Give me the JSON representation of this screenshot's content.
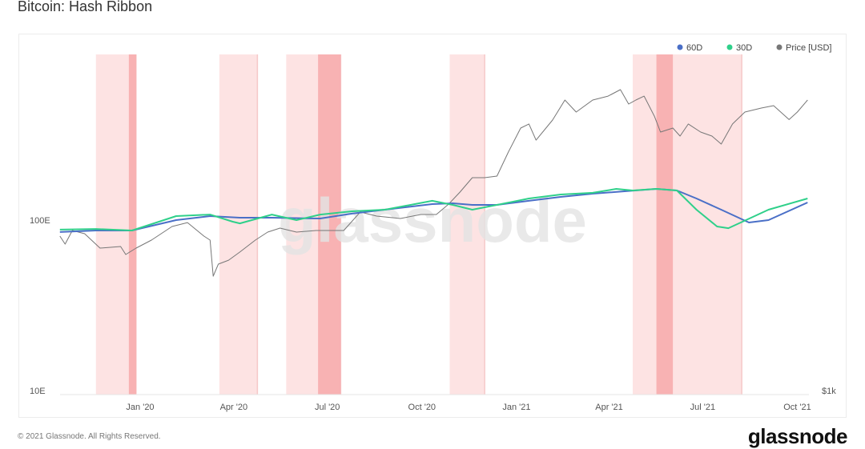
{
  "chart_data": {
    "type": "line",
    "title": "Bitcoin: Hash Ribbon",
    "left_axis": {
      "scale": "log",
      "range": [
        10,
        1000
      ],
      "ticks": [
        {
          "value": 10,
          "label": "10E"
        },
        {
          "value": 100,
          "label": "100E"
        }
      ]
    },
    "right_axis": {
      "scale": "log",
      "ticks": [
        {
          "value": 1000,
          "label": "$1k"
        }
      ]
    },
    "x_axis": {
      "range": [
        "2019-10-15",
        "2021-10-13"
      ],
      "ticks": [
        {
          "date": "2020-01-01",
          "label": "Jan '20"
        },
        {
          "date": "2020-04-01",
          "label": "Apr '20"
        },
        {
          "date": "2020-07-01",
          "label": "Jul '20"
        },
        {
          "date": "2020-10-01",
          "label": "Oct '20"
        },
        {
          "date": "2021-01-01",
          "label": "Jan '21"
        },
        {
          "date": "2021-04-01",
          "label": "Apr '21"
        },
        {
          "date": "2021-07-01",
          "label": "Jul '21"
        },
        {
          "date": "2021-10-01",
          "label": "Oct '21"
        }
      ]
    },
    "legend": {
      "placement": "top-right",
      "items": [
        {
          "name": "60D",
          "color": "#4a6fc7"
        },
        {
          "name": "30D",
          "color": "#2fd08a"
        },
        {
          "name": "Price [USD]",
          "color": "#777777"
        }
      ]
    },
    "bands": [
      {
        "start": "2019-11-19",
        "end": "2019-12-28",
        "kind": "capitulation"
      },
      {
        "start": "2019-12-21",
        "end": "2019-12-28",
        "kind": "recovery"
      },
      {
        "start": "2020-03-18",
        "end": "2020-04-24",
        "kind": "capitulation"
      },
      {
        "start": "2020-05-22",
        "end": "2020-07-14",
        "kind": "capitulation"
      },
      {
        "start": "2020-06-22",
        "end": "2020-07-14",
        "kind": "recovery"
      },
      {
        "start": "2020-10-28",
        "end": "2020-12-01",
        "kind": "capitulation"
      },
      {
        "start": "2021-04-24",
        "end": "2021-08-08",
        "kind": "capitulation"
      },
      {
        "start": "2021-05-17",
        "end": "2021-06-02",
        "kind": "recovery"
      }
    ],
    "series": [
      {
        "name": "60D",
        "axis": "left",
        "color": "#4a6fc7",
        "points": [
          [
            "2019-10-15",
            85.1
          ],
          [
            "2019-11-19",
            86.9
          ],
          [
            "2019-12-24",
            86.9
          ],
          [
            "2020-02-05",
            100
          ],
          [
            "2020-03-09",
            105.5
          ],
          [
            "2020-04-07",
            103.3
          ],
          [
            "2020-05-08",
            103.3
          ],
          [
            "2020-06-24",
            102.2
          ],
          [
            "2020-07-25",
            109.1
          ],
          [
            "2020-08-26",
            115.1
          ],
          [
            "2020-10-11",
            124.2
          ],
          [
            "2020-10-31",
            125.5
          ],
          [
            "2020-11-19",
            122.8
          ],
          [
            "2020-12-13",
            122.8
          ],
          [
            "2021-01-13",
            129.7
          ],
          [
            "2021-02-13",
            136.8
          ],
          [
            "2021-03-16",
            142.9
          ],
          [
            "2021-04-16",
            147.6
          ],
          [
            "2021-05-17",
            152.4
          ],
          [
            "2021-06-06",
            149.2
          ],
          [
            "2021-06-25",
            133.9
          ],
          [
            "2021-07-19",
            115.1
          ],
          [
            "2021-08-15",
            96.8
          ],
          [
            "2021-09-03",
            100
          ],
          [
            "2021-10-11",
            126.9
          ]
        ]
      },
      {
        "name": "30D",
        "axis": "left",
        "color": "#2fd08a",
        "points": [
          [
            "2019-10-15",
            87.9
          ],
          [
            "2019-11-19",
            88.7
          ],
          [
            "2019-12-24",
            86.9
          ],
          [
            "2020-02-05",
            105.5
          ],
          [
            "2020-03-09",
            107.8
          ],
          [
            "2020-03-31",
            97.9
          ],
          [
            "2020-04-07",
            95.7
          ],
          [
            "2020-05-08",
            107.8
          ],
          [
            "2020-06-01",
            100
          ],
          [
            "2020-06-24",
            107.8
          ],
          [
            "2020-07-25",
            112.6
          ],
          [
            "2020-08-26",
            115.1
          ],
          [
            "2020-10-11",
            129.7
          ],
          [
            "2020-10-31",
            122.8
          ],
          [
            "2020-11-19",
            115.1
          ],
          [
            "2020-12-13",
            122.8
          ],
          [
            "2021-01-13",
            133.9
          ],
          [
            "2021-02-13",
            141.3
          ],
          [
            "2021-03-16",
            144.5
          ],
          [
            "2021-04-08",
            152.4
          ],
          [
            "2021-04-24",
            149.2
          ],
          [
            "2021-05-17",
            152.4
          ],
          [
            "2021-06-06",
            149.2
          ],
          [
            "2021-06-25",
            115.1
          ],
          [
            "2021-07-15",
            91.7
          ],
          [
            "2021-07-26",
            89.7
          ],
          [
            "2021-08-07",
            96.8
          ],
          [
            "2021-09-03",
            115.1
          ],
          [
            "2021-10-11",
            133.9
          ]
        ]
      },
      {
        "name": "Price [USD]",
        "axis": "right",
        "color": "#777777",
        "points": [
          [
            "2019-10-15",
            8650
          ],
          [
            "2019-10-20",
            7730
          ],
          [
            "2019-10-27",
            9350
          ],
          [
            "2019-11-08",
            8940
          ],
          [
            "2019-11-23",
            7310
          ],
          [
            "2019-12-13",
            7480
          ],
          [
            "2019-12-18",
            6690
          ],
          [
            "2019-12-28",
            7310
          ],
          [
            "2020-01-12",
            8180
          ],
          [
            "2020-02-01",
            9890
          ],
          [
            "2020-02-16",
            10450
          ],
          [
            "2020-03-03",
            8650
          ],
          [
            "2020-03-09",
            8180
          ],
          [
            "2020-03-12",
            4940
          ],
          [
            "2020-03-17",
            5850
          ],
          [
            "2020-03-27",
            6180
          ],
          [
            "2020-04-07",
            6920
          ],
          [
            "2020-04-22",
            8180
          ],
          [
            "2020-05-04",
            9140
          ],
          [
            "2020-05-16",
            9670
          ],
          [
            "2020-06-01",
            9140
          ],
          [
            "2020-06-20",
            9350
          ],
          [
            "2020-07-17",
            9350
          ],
          [
            "2020-08-02",
            12100
          ],
          [
            "2020-08-18",
            11430
          ],
          [
            "2020-09-10",
            11060
          ],
          [
            "2020-09-30",
            11690
          ],
          [
            "2020-10-15",
            11690
          ],
          [
            "2020-10-27",
            13520
          ],
          [
            "2020-11-07",
            15990
          ],
          [
            "2020-11-19",
            19550
          ],
          [
            "2020-12-01",
            19550
          ],
          [
            "2020-12-13",
            20000
          ],
          [
            "2020-12-24",
            27970
          ],
          [
            "2021-01-05",
            39100
          ],
          [
            "2021-01-13",
            41400
          ],
          [
            "2021-01-20",
            33050
          ],
          [
            "2021-02-05",
            43750
          ],
          [
            "2021-02-17",
            57800
          ],
          [
            "2021-02-28",
            48900
          ],
          [
            "2021-03-16",
            57800
          ],
          [
            "2021-03-31",
            61100
          ],
          [
            "2021-04-12",
            66900
          ],
          [
            "2021-04-20",
            54700
          ],
          [
            "2021-04-27",
            57800
          ],
          [
            "2021-05-05",
            61100
          ],
          [
            "2021-05-15",
            46200
          ],
          [
            "2021-05-21",
            36980
          ],
          [
            "2021-06-02",
            39100
          ],
          [
            "2021-06-09",
            34980
          ],
          [
            "2021-06-17",
            41400
          ],
          [
            "2021-06-29",
            36980
          ],
          [
            "2021-07-10",
            34980
          ],
          [
            "2021-07-19",
            31260
          ],
          [
            "2021-07-30",
            41400
          ],
          [
            "2021-08-11",
            48900
          ],
          [
            "2021-08-27",
            51700
          ],
          [
            "2021-09-08",
            53500
          ],
          [
            "2021-09-23",
            44000
          ],
          [
            "2021-10-01",
            48900
          ],
          [
            "2021-10-11",
            57800
          ]
        ]
      }
    ]
  },
  "watermark": "glassnode",
  "footer": "© 2021 Glassnode. All Rights Reserved.",
  "logo": "glassnode"
}
